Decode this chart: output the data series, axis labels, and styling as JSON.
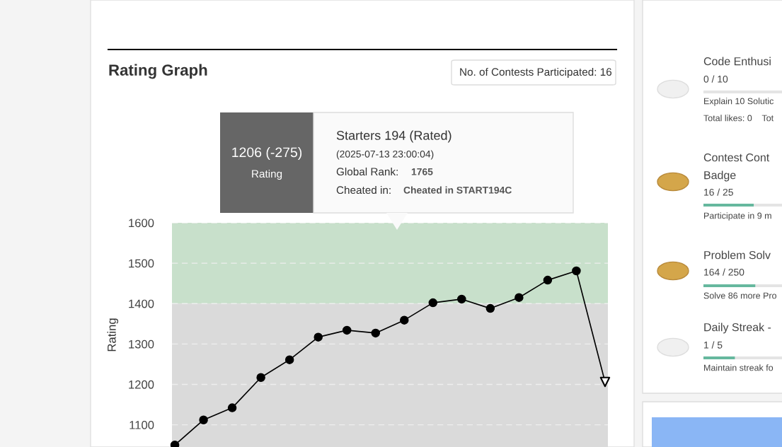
{
  "chart_data": {
    "type": "line",
    "title": "Rating Graph",
    "ylabel": "Rating",
    "categories": [
      null,
      null,
      null,
      null,
      null,
      null,
      null,
      null,
      null,
      null,
      null,
      null,
      null,
      null,
      null,
      null
    ],
    "series": [
      {
        "color": "#000000",
        "marker": "circle",
        "values": [
          1050,
          1112,
          1142,
          1217,
          1261,
          1317,
          1334,
          1327,
          1359,
          1402,
          1411,
          1388,
          1415,
          1458,
          1481,
          null
        ]
      },
      {
        "color": "#000000",
        "marker": "none",
        "values": [
          null,
          null,
          null,
          null,
          null,
          null,
          null,
          null,
          null,
          null,
          null,
          null,
          null,
          null,
          1481,
          1206
        ]
      },
      {
        "type": "scatter",
        "color": "#000000",
        "marker": "triangle",
        "values": [
          null,
          null,
          null,
          null,
          null,
          null,
          null,
          null,
          null,
          null,
          null,
          null,
          null,
          null,
          null,
          1206
        ]
      }
    ],
    "ylim": [
      1045,
      1600
    ],
    "yticks": [
      1100,
      1200,
      1300,
      1400,
      1500,
      1600
    ],
    "grid": "y",
    "bands": [
      {
        "axis": "y",
        "from": 1400,
        "to": 1600,
        "color": "#c8e0cb"
      },
      {
        "axis": "y",
        "from": 1045,
        "to": 1400,
        "color": "#dadada"
      }
    ],
    "tick_labels": "y",
    "annotations": [
      "No. of Contests Participated: 16",
      "1206 (-275)",
      "Rating",
      "Starters 194 (Rated)",
      "(2025-07-13 23:00:04)",
      "Global Rank:",
      "1765",
      "Cheated in:",
      "Cheated in START194C",
      "Code Enthusi",
      "0 / 10",
      "Explain 10 Solutic",
      "Total likes: 0    Tot",
      "Contest Cont",
      "Badge",
      "16 / 25",
      "Participate in 9 m",
      "Problem Solv",
      "164 / 250",
      "Solve 86 more Pro",
      "Daily Streak -",
      "1 / 5",
      "Maintain streak fo"
    ]
  }
}
